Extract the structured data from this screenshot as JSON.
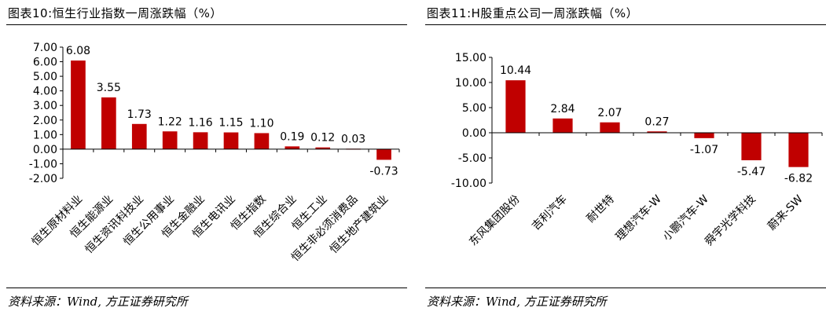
{
  "panels": [
    {
      "title": "图表10:恒生行业指数一周涨跌幅（%）",
      "source": "资料来源：Wind, 方正证券研究所"
    },
    {
      "title": "图表11:H股重点公司一周涨跌幅（%）",
      "source": "资料来源：Wind, 方正证券研究所"
    }
  ],
  "colors": {
    "bar": "#C00000",
    "axis": "#000000"
  },
  "chart_data": [
    {
      "type": "bar",
      "title": "",
      "xlabel": "",
      "ylabel": "",
      "categories": [
        "恒生原材料业",
        "恒生能源业",
        "恒生资讯科技业",
        "恒生公用事业",
        "恒生金融业",
        "恒生电讯业",
        "恒生指数",
        "恒生综合业",
        "恒生工业",
        "恒生非必须消费品",
        "恒生地产建筑业"
      ],
      "values": [
        6.08,
        3.55,
        1.73,
        1.22,
        1.16,
        1.15,
        1.1,
        0.19,
        0.12,
        0.03,
        -0.73
      ],
      "value_labels": [
        "6.08",
        "3.55",
        "1.73",
        "1.22",
        "1.16",
        "1.15",
        "1.10",
        "0.19",
        "0.12",
        "0.03",
        "-0.73"
      ],
      "ylim": [
        -2,
        7
      ],
      "yticks": [
        -2,
        -1,
        0,
        1,
        2,
        3,
        4,
        5,
        6,
        7
      ],
      "ytick_labels": [
        "-2.00",
        "-1.00",
        "0.00",
        "1.00",
        "2.00",
        "3.00",
        "4.00",
        "5.00",
        "6.00",
        "7.00"
      ],
      "grid": false,
      "legend": "none"
    },
    {
      "type": "bar",
      "title": "",
      "xlabel": "",
      "ylabel": "",
      "categories": [
        "东风集团股份",
        "吉利汽车",
        "耐世特",
        "理想汽车-W",
        "小鹏汽车-W",
        "舜宇光学科技",
        "蔚来-SW"
      ],
      "values": [
        10.44,
        2.84,
        2.07,
        0.27,
        -1.07,
        -5.47,
        -6.82
      ],
      "value_labels": [
        "10.44",
        "2.84",
        "2.07",
        "0.27",
        "-1.07",
        "-5.47",
        "-6.82"
      ],
      "ylim": [
        -10,
        15
      ],
      "yticks": [
        -10,
        -5,
        0,
        5,
        10,
        15
      ],
      "ytick_labels": [
        "-10.00",
        "-5.00",
        "0.00",
        "5.00",
        "10.00",
        "15.00"
      ],
      "grid": false,
      "legend": "none"
    }
  ]
}
